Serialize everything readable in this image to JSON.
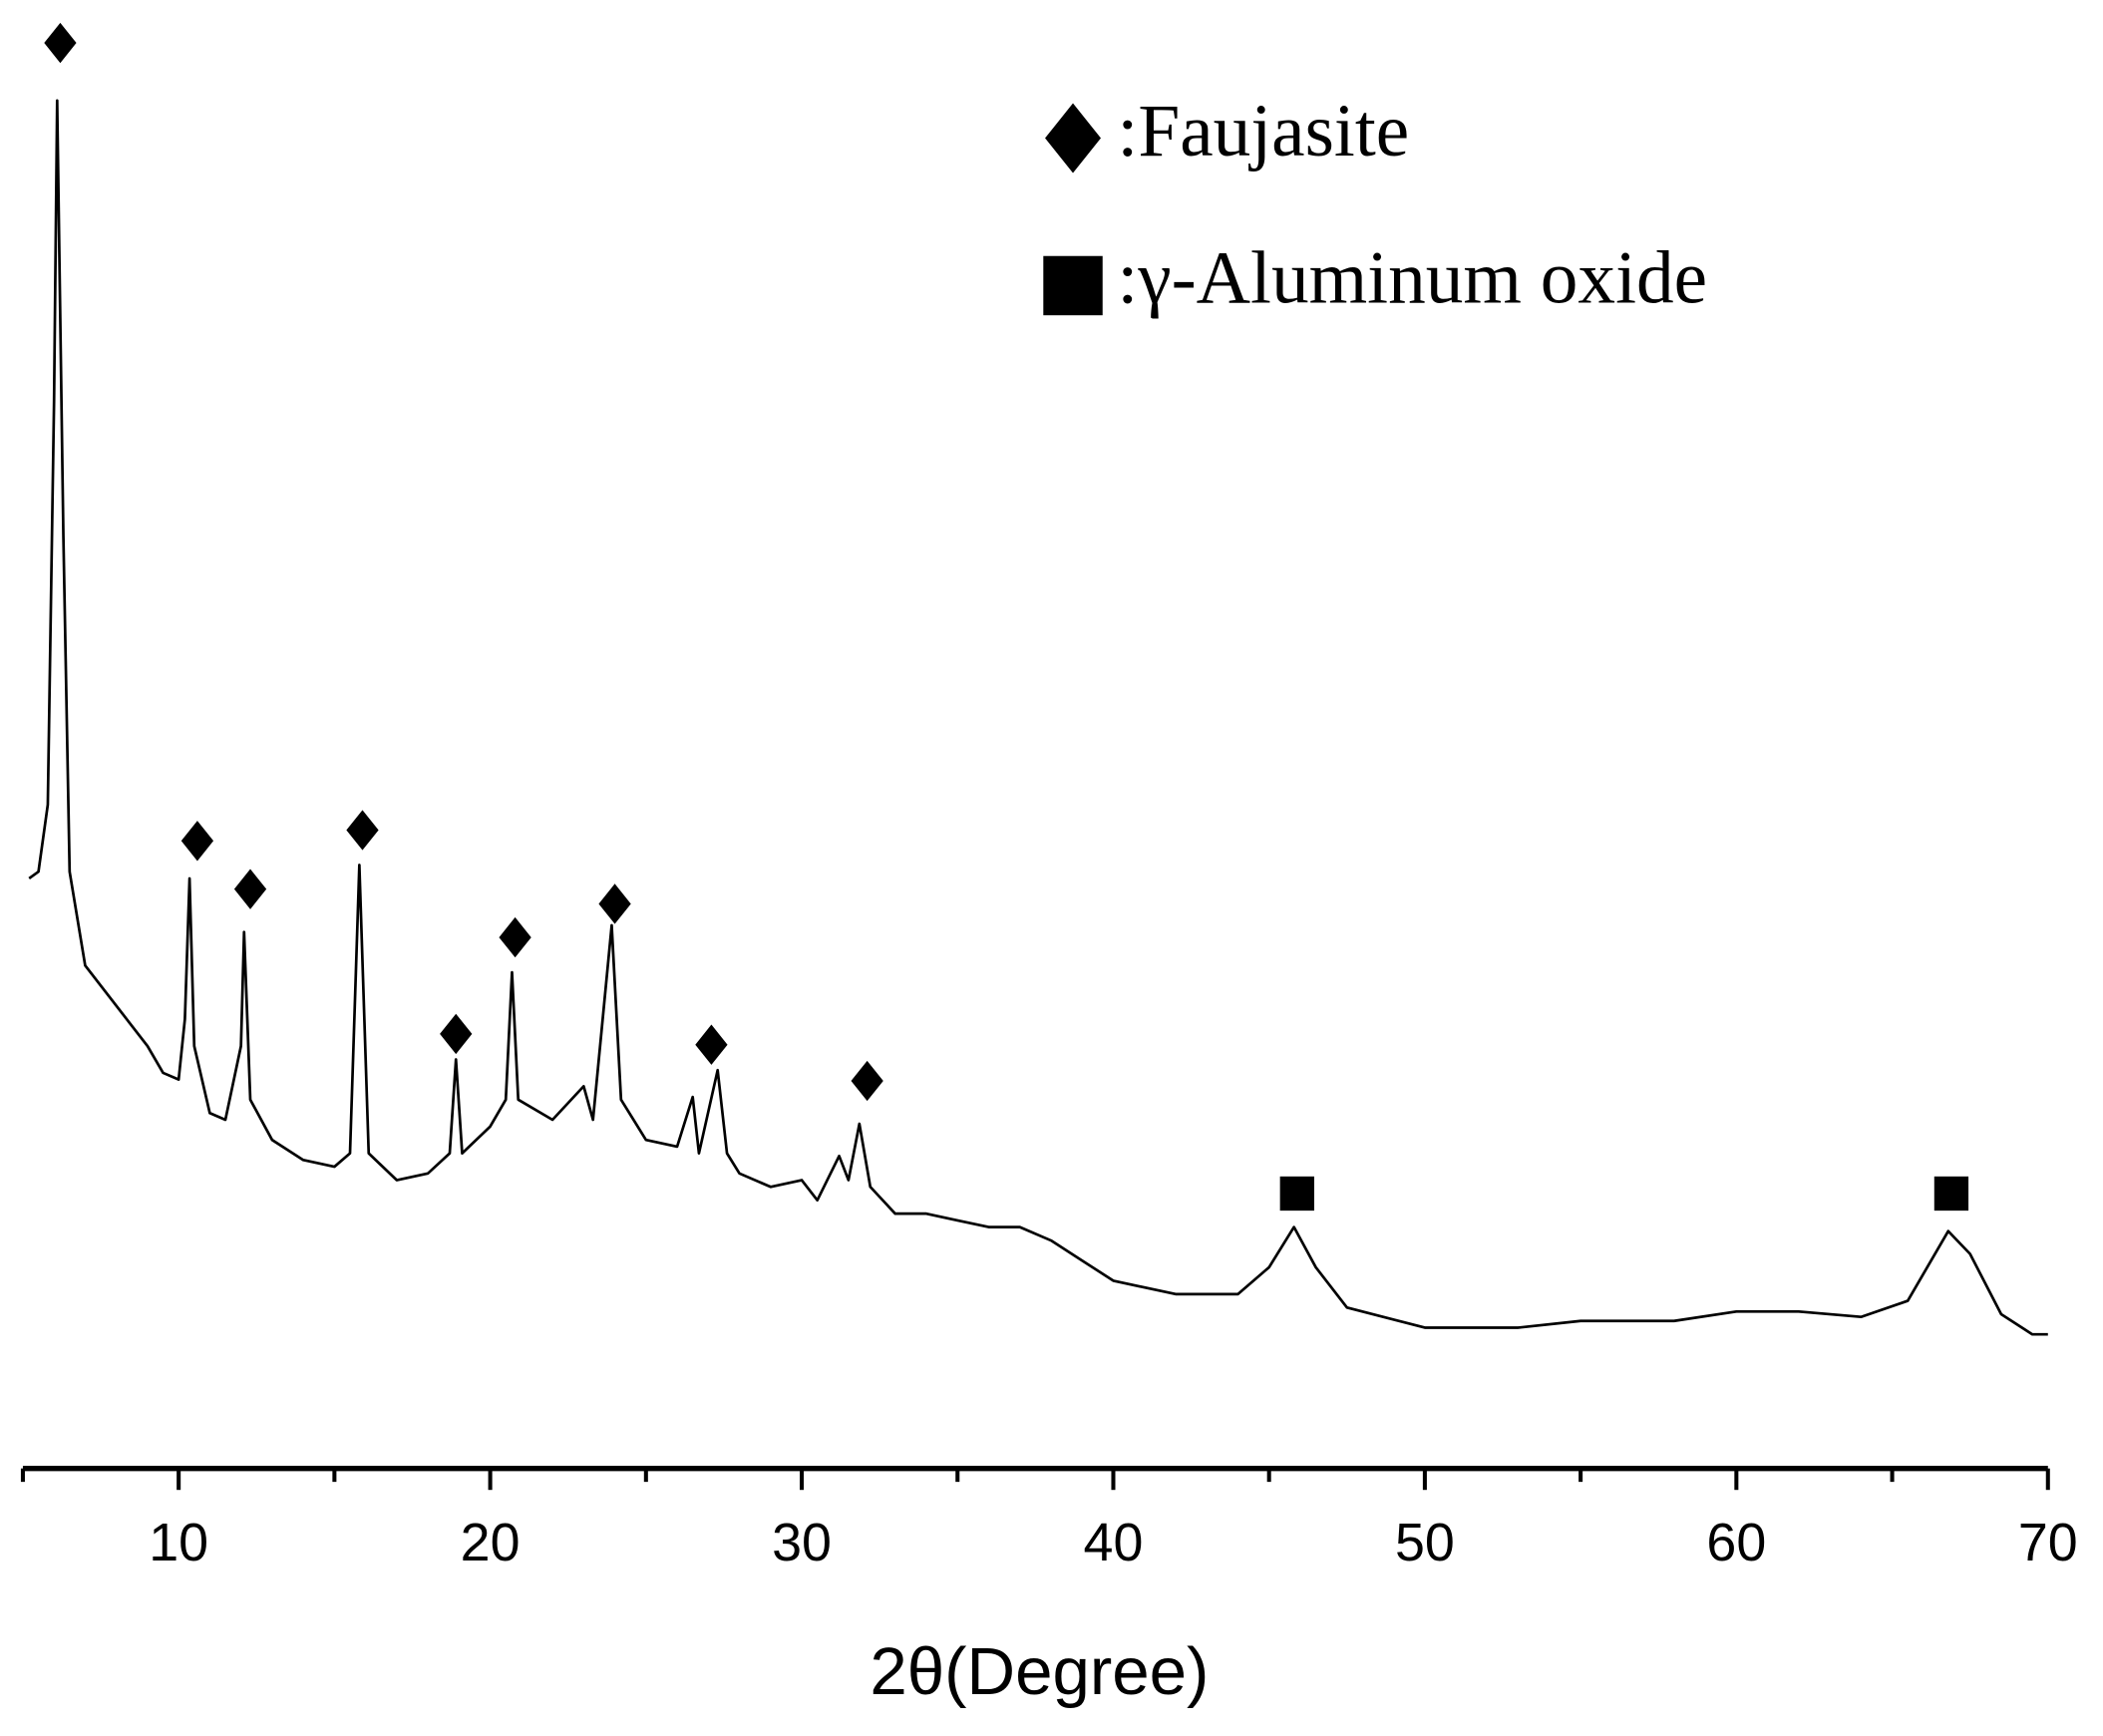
{
  "chart_data": {
    "type": "line",
    "x_label": "2θ(Degree)",
    "xlim": [
      5,
      70
    ],
    "xticks": [
      10,
      20,
      30,
      40,
      50,
      60,
      70
    ],
    "xminorticks": [
      5,
      15,
      25,
      35,
      45,
      55,
      65
    ],
    "ylim": [
      0,
      109
    ],
    "color": "#000000",
    "x": [
      5.2,
      5.5,
      5.8,
      6.0,
      6.1,
      6.3,
      6.5,
      7,
      8,
      9,
      9.5,
      10,
      10.2,
      10.35,
      10.5,
      11,
      11.5,
      12,
      12.1,
      12.3,
      13,
      14,
      15,
      15.5,
      15.8,
      16.1,
      17,
      18,
      18.7,
      18.9,
      19.1,
      20,
      20.5,
      20.7,
      20.9,
      22,
      23,
      23.3,
      23.9,
      24.2,
      25,
      26,
      26.5,
      26.7,
      27.3,
      27.6,
      28,
      29,
      30,
      30.5,
      31.2,
      31.5,
      31.85,
      32.2,
      33,
      34,
      35,
      36,
      37,
      38,
      39,
      40,
      42,
      44,
      45,
      45.8,
      46.5,
      47.5,
      50,
      53,
      55,
      58,
      60,
      62,
      64,
      65.5,
      66.8,
      67.5,
      68.5,
      69.5,
      70
    ],
    "values": [
      44,
      44.5,
      49.5,
      79.5,
      102,
      69.5,
      44.5,
      37.5,
      34.5,
      31.5,
      29.5,
      29,
      33.5,
      44,
      31.5,
      26.5,
      26,
      31.5,
      40,
      27.5,
      24.5,
      23,
      22.5,
      23.5,
      45,
      23.5,
      21.5,
      22,
      23.5,
      30.5,
      23.5,
      25.5,
      27.5,
      37,
      27.5,
      26,
      28.5,
      26,
      40.5,
      27.5,
      24.5,
      24,
      27.7,
      23.5,
      29.7,
      23.5,
      22,
      21,
      21.5,
      20,
      23.3,
      21.5,
      25.7,
      21,
      19,
      19,
      18.5,
      18,
      18,
      17,
      15.5,
      14,
      13,
      13,
      15,
      18,
      15,
      12,
      10.5,
      10.5,
      11,
      11,
      11.7,
      11.7,
      11.3,
      12.5,
      17.7,
      16,
      11.5,
      10,
      10
    ],
    "peak_markers": [
      {
        "shape": "diamond",
        "x": 6.2,
        "y": 106.3
      },
      {
        "shape": "diamond",
        "x": 10.6,
        "y": 46.8
      },
      {
        "shape": "diamond",
        "x": 12.3,
        "y": 43.2
      },
      {
        "shape": "diamond",
        "x": 15.9,
        "y": 47.6
      },
      {
        "shape": "diamond",
        "x": 18.9,
        "y": 32.4
      },
      {
        "shape": "diamond",
        "x": 20.8,
        "y": 39.6
      },
      {
        "shape": "diamond",
        "x": 24,
        "y": 42.1
      },
      {
        "shape": "diamond",
        "x": 27.1,
        "y": 31.6
      },
      {
        "shape": "diamond",
        "x": 32.1,
        "y": 28.9
      },
      {
        "shape": "square",
        "x": 45.9,
        "y": 20.5
      },
      {
        "shape": "square",
        "x": 66.9,
        "y": 20.5
      }
    ],
    "legend": [
      {
        "shape": "diamond",
        "label": ":Faujasite"
      },
      {
        "shape": "square",
        "label": ":γ-Aluminum oxide"
      }
    ]
  }
}
